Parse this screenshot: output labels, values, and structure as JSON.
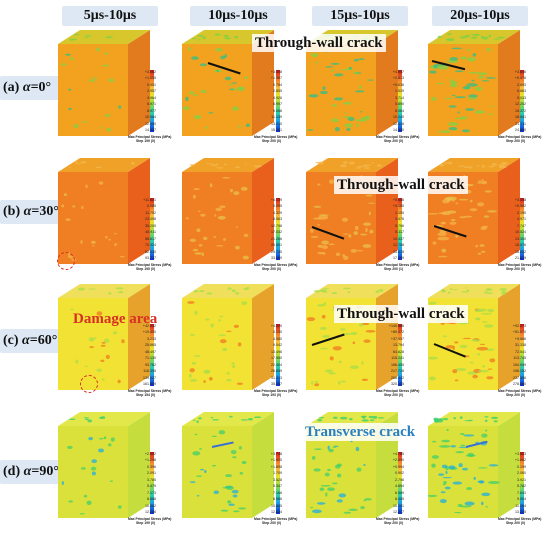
{
  "column_headers": [
    "5μs-10μs",
    "10μs-10μs",
    "15μs-10μs",
    "20μs-10μs"
  ],
  "rows": [
    {
      "label_prefix": "(a) ",
      "label_alpha": "α",
      "label_value": "=0°",
      "annotation": "Through-wall crack",
      "legends": [
        {
          "ticks": [
            "+3.062",
            "+1.055",
            "0.951",
            "2.957",
            "4.964",
            "6.971",
            "8.977",
            "10.984",
            "12.990",
            "14.997"
          ],
          "caption": "Max Principal Stress (MPa)",
          "step": "Step 199 (0)"
        },
        {
          "ticks": [
            "+3.358",
            "+1.387",
            "0.784",
            "2.855",
            "4.926",
            "6.997",
            "9.068",
            "11.139",
            "13.210",
            "15.281"
          ],
          "caption": "Max Principal Stress (MPa)",
          "step": "Step 200 (0)"
        },
        {
          "ticks": [
            "+4.997",
            "+2.813",
            "+0.636",
            "1.539",
            "3.714",
            "5.890",
            "8.064",
            "10.240",
            "12.416",
            "14.590"
          ],
          "caption": "Max Principal Stress (MPa)",
          "step": "Step 200 (0)"
        },
        {
          "ticks": [
            "+3.646",
            "+0.476",
            "2.693",
            "5.863",
            "9.033",
            "12.202",
            "15.372",
            "18.541",
            "21.711",
            "24.880"
          ],
          "caption": "Max Principal Stress (MPa)",
          "step": "Step 200 (0)"
        }
      ]
    },
    {
      "label_prefix": "(b) ",
      "label_alpha": "α",
      "label_value": "=30°",
      "annotation": "Through-wall crack",
      "legends": [
        {
          "ticks": [
            "+11.621",
            "0.085",
            "11.792",
            "23.498",
            "35.205",
            "46.911",
            "58.617",
            "70.324",
            "82.030",
            "93.737"
          ],
          "caption": "Max Principal Stress (MPa)",
          "step": "Step 195 (0)"
        },
        {
          "ticks": [
            "+4.139",
            "0.095",
            "4.329",
            "8.563",
            "12.798",
            "17.032",
            "21.266",
            "25.501",
            "29.735",
            "33.969"
          ],
          "caption": "Max Principal Stress (MPa)",
          "step": "Step 200 (0)"
        },
        {
          "ticks": [
            "+5.486",
            "+3.165",
            "1.155",
            "3.476",
            "5.796",
            "8.117",
            "10.437",
            "12.758",
            "15.078",
            "17.399"
          ],
          "caption": "Max Principal Stress (MPa)",
          "step": "Step 200 (1)"
        },
        {
          "ticks": [
            "+3.358",
            "+0.582",
            "2.195",
            "4.971",
            "7.747",
            "10.524",
            "13.300",
            "16.076",
            "18.852",
            "21.629"
          ],
          "caption": "Max Principal Stress (MPa)",
          "step": "Step 200 (0)"
        }
      ]
    },
    {
      "label_prefix": "(c) ",
      "label_alpha": "α",
      "label_value": "=60°",
      "annotation": "Through-wall crack",
      "annotation2": "Damage area",
      "legends": [
        {
          "ticks": [
            "+42.032",
            "+19.400",
            "3.233",
            "25.865",
            "48.497",
            "71.130",
            "93.762",
            "116.395",
            "139.027",
            "161.659"
          ],
          "caption": "Max Principal Stress (MPa)",
          "step": "Step 154 (0)"
        },
        {
          "ticks": [
            "+4.320",
            "0.130",
            "4.580",
            "9.042",
            "13.496",
            "17.950",
            "22.404",
            "26.859",
            "31.313",
            "35.767"
          ],
          "caption": "Max Principal Stress (MPa)",
          "step": "Step 193 (0)"
        },
        {
          "ticks": [
            "+140.986",
            "+89.472",
            "+37.957",
            "13.794",
            "64.828",
            "115.241",
            "166.455",
            "217.728",
            "268.442",
            "320.155"
          ],
          "caption": "Max Principal Stress (MPa)",
          "step": "Step 200 (0)"
        },
        {
          "ticks": [
            "+92.273",
            "+51.070",
            "+9.866",
            "31.338",
            "72.541",
            "113.745",
            "154.949",
            "196.152",
            "237.356",
            "278.860"
          ],
          "caption": "Max Principal Stress (MPa)",
          "step": "Step 200 (0)"
        }
      ]
    },
    {
      "label_prefix": "(d) ",
      "label_alpha": "α",
      "label_value": "=90°",
      "annotation": "Transverse crack",
      "legends": [
        {
          "ticks": [
            "+2.992",
            "+1.298",
            "0.396",
            "2.091",
            "3.785",
            "5.479",
            "7.173",
            "8.868",
            "10.562",
            "12.256"
          ],
          "caption": "Max Principal Stress (MPa)",
          "step": "Step 199 (0)"
        },
        {
          "ticks": [
            "+3.748",
            "+1.925",
            "+1.898",
            "1.709",
            "3.528",
            "5.347",
            "7.166",
            "8.986",
            "10.805",
            "12.624"
          ],
          "caption": "Max Principal Stress (MPa)",
          "step": "Step 200 (0)"
        },
        {
          "ticks": [
            "+4.785",
            "+2.890",
            "+0.994",
            "0.902",
            "2.798",
            "4.694",
            "6.589",
            "8.485",
            "10.381",
            "12.277"
          ],
          "caption": "Max Principal Stress (MPa)",
          "step": "Step 200 (0)"
        },
        {
          "ticks": [
            "+3.523",
            "+1.862",
            "0.199",
            "2.060",
            "3.921",
            "5.782",
            "7.643",
            "9.504",
            "11.364",
            "13.225"
          ],
          "caption": "Max Principal Stress (MPa)",
          "step": "Step 200 (0)"
        }
      ]
    }
  ],
  "block_colors": [
    {
      "front": "#f2a21f",
      "side": "#e27a1e",
      "top": "#d8c72c",
      "spot": "#7fd145",
      "spot2": "#2fbf8a"
    },
    {
      "front": "#ef7f22",
      "side": "#e8601c",
      "top": "#f0a228",
      "spot": "#f4b64a",
      "spot2": "#e8c24a"
    },
    {
      "front": "#f2e233",
      "side": "#e6a22a",
      "top": "#f0df5a",
      "spot": "#a8de4a",
      "spot2": "#f07a22"
    },
    {
      "front": "#d9e13a",
      "side": "#c6dd3e",
      "top": "#e3e84a",
      "spot": "#3fcf6b",
      "spot2": "#1faee0"
    }
  ]
}
